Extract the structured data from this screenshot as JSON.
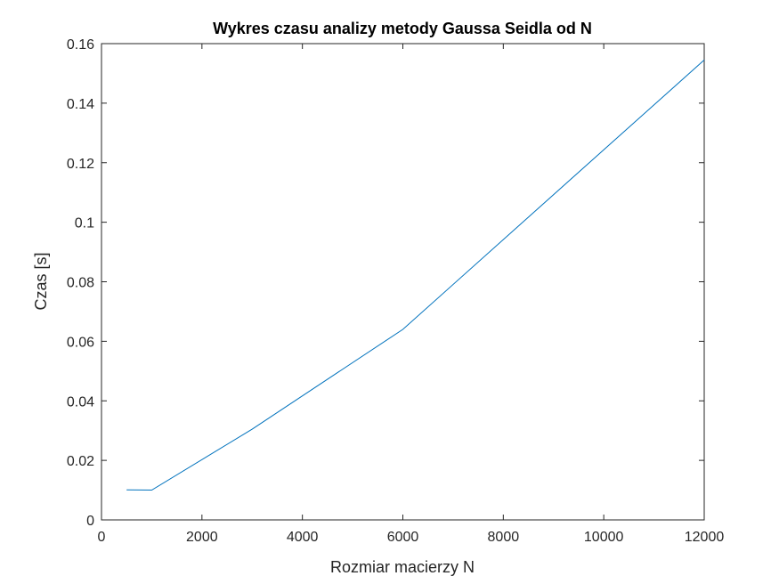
{
  "chart_data": {
    "type": "line",
    "title": "Wykres czasu analizy metody Gaussa Seidla od N",
    "xlabel": "Rozmiar macierzy N",
    "ylabel": "Czas [s]",
    "xlim": [
      0,
      12000
    ],
    "ylim": [
      0,
      0.16
    ],
    "xticks": [
      0,
      2000,
      4000,
      6000,
      8000,
      10000,
      12000
    ],
    "xtick_labels": [
      "0",
      "2000",
      "4000",
      "6000",
      "8000",
      "10000",
      "12000"
    ],
    "yticks": [
      0,
      0.02,
      0.04,
      0.06,
      0.08,
      0.1,
      0.12,
      0.14,
      0.16
    ],
    "ytick_labels": [
      "0",
      "0.02",
      "0.04",
      "0.06",
      "0.08",
      "0.1",
      "0.12",
      "0.14",
      "0.16"
    ],
    "grid": false,
    "series": [
      {
        "color": "#0072bd",
        "x": [
          500,
          1000,
          3000,
          6000,
          12000
        ],
        "y": [
          0.0101,
          0.01,
          0.0305,
          0.064,
          0.1545
        ]
      }
    ]
  }
}
